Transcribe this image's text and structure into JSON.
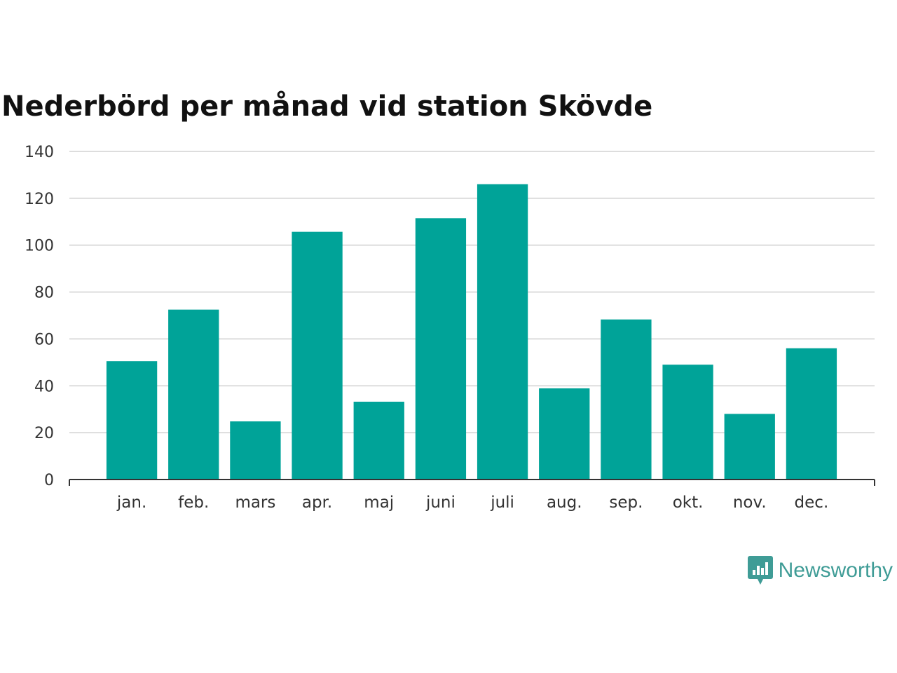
{
  "title": "Nederbörd per månad vid station Skövde",
  "brand": {
    "name": "Newsworthy",
    "icon": "newsworthy-logo-icon"
  },
  "colors": {
    "bar": "#00a398",
    "grid": "#dddddd",
    "axis": "#333333",
    "brand": "#3f9c96"
  },
  "chart_data": {
    "type": "bar",
    "title": "Nederbörd per månad vid station Skövde",
    "xlabel": "",
    "ylabel": "",
    "categories": [
      "jan.",
      "feb.",
      "mars",
      "apr.",
      "maj",
      "juni",
      "juli",
      "aug.",
      "sep.",
      "okt.",
      "nov.",
      "dec."
    ],
    "values": [
      50.5,
      72.5,
      24.8,
      105.7,
      33.2,
      111.5,
      126,
      38.9,
      68.3,
      49,
      28,
      56
    ],
    "ylim": [
      0,
      140
    ],
    "yticks": [
      0,
      20,
      40,
      60,
      80,
      100,
      120,
      140
    ],
    "grid": true,
    "legend": "none"
  }
}
